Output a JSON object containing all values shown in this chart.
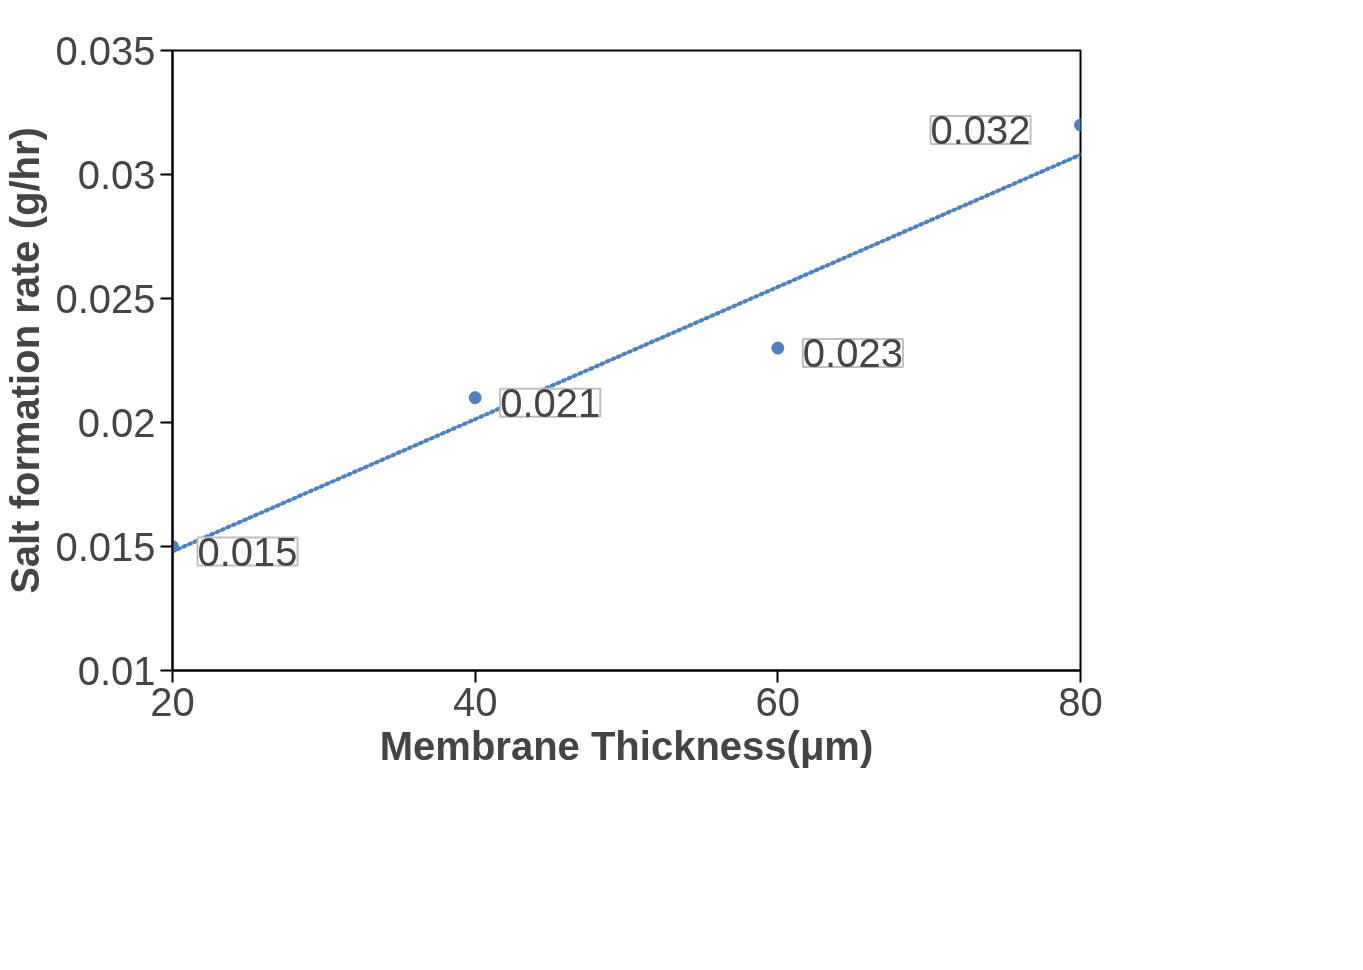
{
  "chart_data": {
    "type": "scatter",
    "xlabel": "Membrane Thickness(μm)",
    "ylabel": "Salt formation rate (g/hr)",
    "x": [
      20,
      40,
      60,
      80
    ],
    "series": [
      {
        "color": "#4f81bd",
        "values": [
          0.015,
          0.021,
          0.023,
          0.032
        ],
        "marker": "circle",
        "data_labels": true
      },
      {
        "type": "line",
        "color": "#4f81bd",
        "x": [
          20,
          80
        ],
        "values": [
          0.0148,
          0.0308
        ],
        "line_style": "dotted"
      }
    ],
    "xlim": [
      20,
      80
    ],
    "xticks": [
      20,
      40,
      60,
      80
    ],
    "ylim": [
      0.01,
      0.035
    ],
    "yticks": [
      0.01,
      0.015,
      0.02,
      0.025,
      0.03,
      0.035
    ],
    "grid": false
  }
}
